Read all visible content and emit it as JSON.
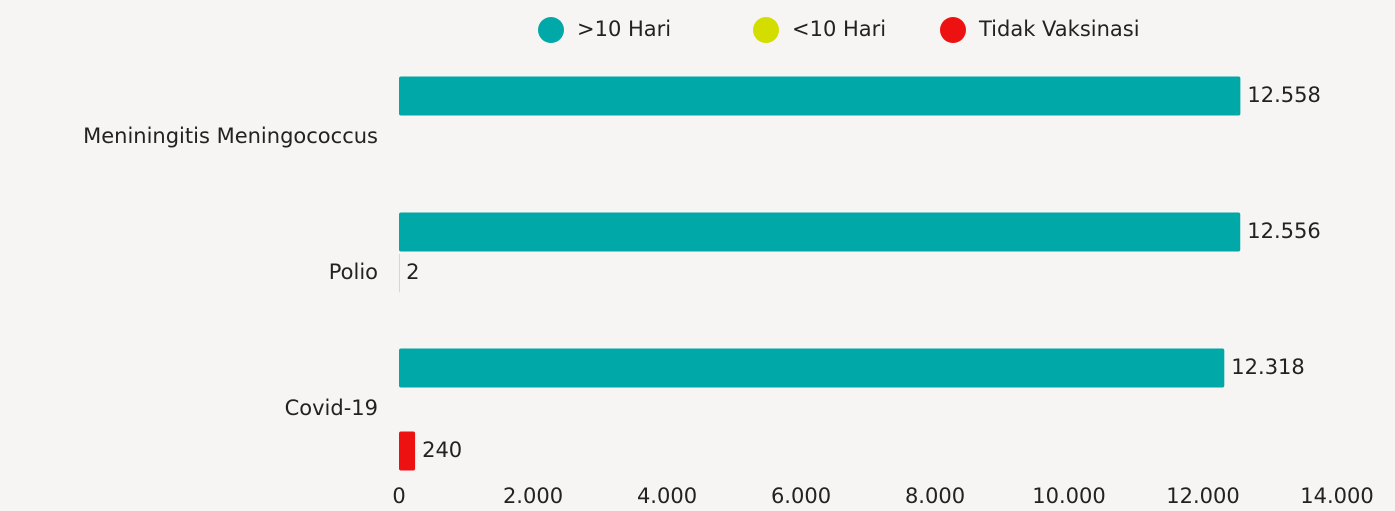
{
  "chart_data": {
    "type": "barh",
    "categories": [
      "Meniningitis Meningococcus",
      "Polio",
      "Covid-19"
    ],
    "series": [
      {
        "name": ">10 Hari",
        "color": "#00a8a8",
        "values": [
          12558,
          12556,
          12318
        ],
        "value_labels": [
          "12.558",
          "12.556",
          "12.318"
        ]
      },
      {
        "name": "<10 Hari",
        "color": "#d4dd00",
        "values": [
          null,
          2,
          null
        ],
        "value_labels": [
          null,
          "2",
          null
        ]
      },
      {
        "name": "Tidak Vaksinasi",
        "color": "#ee1111",
        "values": [
          null,
          null,
          240
        ],
        "value_labels": [
          null,
          null,
          "240"
        ]
      }
    ],
    "xlim": [
      0,
      14000
    ],
    "xticks": [
      0,
      {
        "value": 2000,
        "label": "2.000"
      },
      {
        "value": 4000,
        "label": "4.000"
      },
      {
        "value": 6000,
        "label": "6.000"
      },
      {
        "value": 8000,
        "label": "8.000"
      },
      {
        "value": 10000,
        "label": "10.000"
      },
      {
        "value": 12000,
        "label": "12.000"
      },
      {
        "value": 14000,
        "label": "14.000"
      }
    ],
    "legend": "top",
    "grid": false
  }
}
